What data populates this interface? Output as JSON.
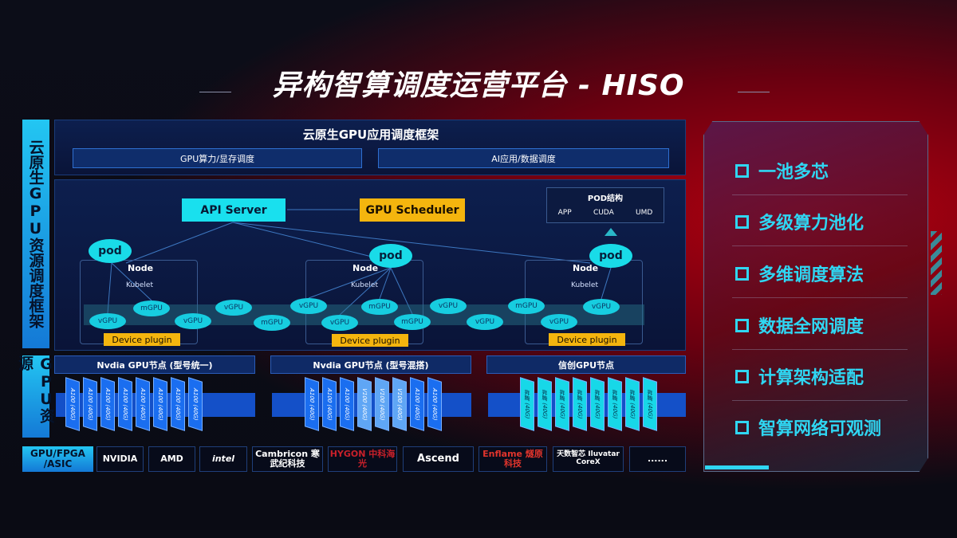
{
  "title": "异构智算调度运营平台 - HISO",
  "left_labels": {
    "framework": "云原生GPU资源调度框架",
    "gpu": "GPU资源"
  },
  "app_framework": {
    "title": "云原生GPU应用调度框架",
    "bars": [
      "GPU算力/显存调度",
      "AI应用/数据调度"
    ]
  },
  "diagram": {
    "api_server": "API Server",
    "gpu_scheduler": "GPU Scheduler",
    "pod_structure": {
      "title": "POD结构",
      "items": [
        "APP",
        "CUDA",
        "UMD"
      ]
    },
    "pod": "pod",
    "node": "Node",
    "kubelet": "Kubelet",
    "device_plugin": "Device plugin",
    "gpus": [
      "vGPU",
      "mGPU",
      "vGPU",
      "vGPU",
      "mGPU",
      "vGPU",
      "vGPU",
      "mGPU",
      "mGPU",
      "vGPU",
      "vGPU",
      "mGPU",
      "vGPU",
      "vGPU"
    ]
  },
  "gpu_nodes": [
    {
      "title": "Nvdia GPU节点 (型号统一)",
      "chips": [
        "A100 (40G)",
        "A100 (40G)",
        "A100 (40G)",
        "A100 (40G)",
        "A100 (40G)",
        "A100 (40G)",
        "A100 (40G)",
        "A100 (40G)"
      ],
      "color": "#1a6ef0"
    },
    {
      "title": "Nvdia GPU节点 (型号混搭)",
      "chips": [
        "A100 (40G)",
        "A100 (40G)",
        "A100 (40G)",
        "V100 (40G)",
        "V100 (40G)",
        "V100 (40G)",
        "A100 (40G)",
        "A100 (40G)"
      ],
      "color": "#1a6ef0",
      "alt_color": "#5fa6f5"
    },
    {
      "title": "信创GPU节点",
      "chips": [
        "昇腾 (40G)",
        "昇腾 (40G)",
        "昇腾 (40G)",
        "昇腾 (40G)",
        "昇腾 (40G)",
        "昇腾 (40G)",
        "昇腾 (40G)",
        "昇腾 (40G)"
      ],
      "color": "#17d8e8"
    }
  ],
  "vendors": {
    "label": "GPU/FPGA /ASIC",
    "items": [
      "NVIDIA",
      "AMD",
      "intel",
      "Cambricon 寒武纪科技",
      "HYGON 中科海光",
      "Ascend",
      "Enflame 燧原科技",
      "天数智芯 Iluvatar CoreX",
      "......"
    ]
  },
  "features": [
    "一池多芯",
    "多级算力池化",
    "多维调度算法",
    "数据全网调度",
    "计算架构适配",
    "智算网络可观测"
  ],
  "colors": {
    "cyan": "#19e0ee",
    "orange": "#f4b50e",
    "blue": "#1a6ef0",
    "red_bg": "#b3000f"
  }
}
